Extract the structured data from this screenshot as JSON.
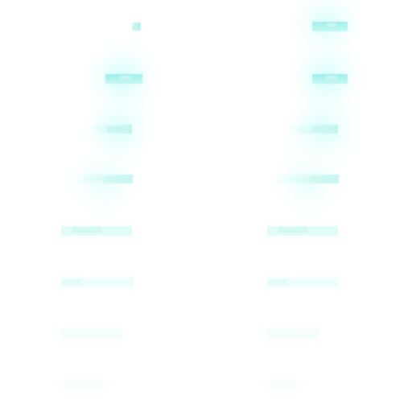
{
  "colors": {
    "background": "#ffffff",
    "accent": "#7fe8de",
    "accent_light": "#c8f6f1",
    "accent_faint": "#e0fbf8"
  },
  "grid": {
    "columns": 2,
    "rows": 8,
    "intensity_by_row": [
      0.35,
      0.95,
      0.8,
      0.6,
      0.45,
      0.3,
      0.18,
      0.08
    ]
  }
}
